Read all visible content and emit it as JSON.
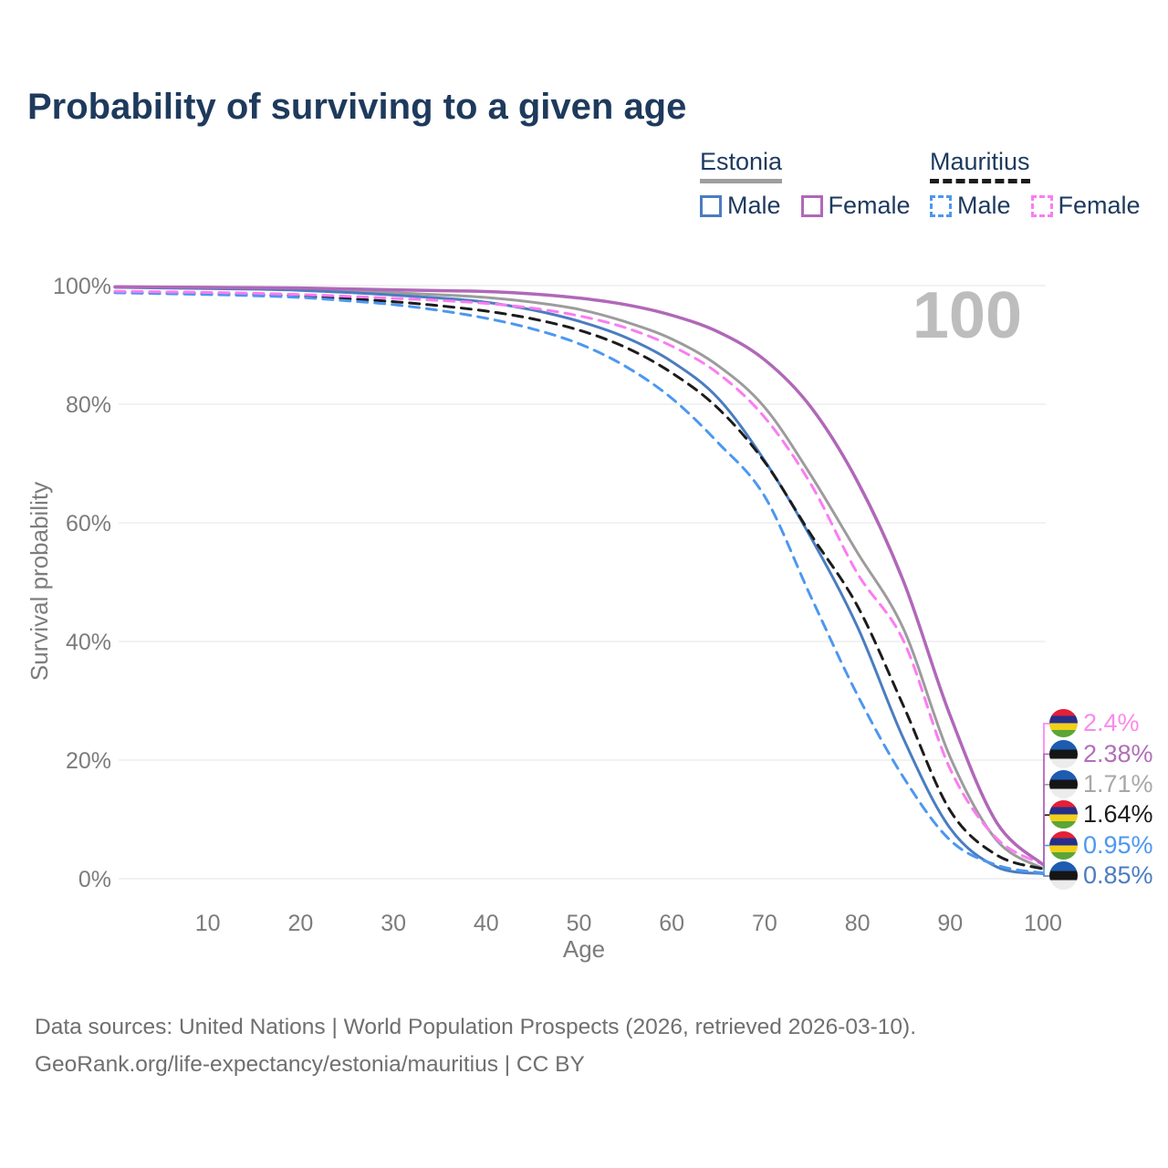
{
  "title": "Probability of surviving to a given age",
  "watermark": "100",
  "legend": {
    "groups": [
      {
        "name": "Estonia",
        "line_style": "solid",
        "underline_color": "#9e9e9e",
        "items": [
          {
            "label": "Male",
            "color": "#4a7dc0",
            "dashed": false
          },
          {
            "label": "Female",
            "color": "#b068b8",
            "dashed": false
          }
        ]
      },
      {
        "name": "Mauritius",
        "line_style": "dashed",
        "underline_color": "#1c1c1c",
        "items": [
          {
            "label": "Male",
            "color": "#4d97f0",
            "dashed": true
          },
          {
            "label": "Female",
            "color": "#fb7cf2",
            "dashed": true
          }
        ]
      }
    ]
  },
  "flags": {
    "estonia": [
      "#1d5cb0",
      "#151515",
      "#ececec"
    ],
    "mauritius": [
      "#e32036",
      "#25308a",
      "#f2cf1c",
      "#5ba636"
    ]
  },
  "chart_data": {
    "type": "line",
    "title": "Probability of surviving to a given age",
    "xlabel": "Age",
    "ylabel": "Survival probability",
    "xlim": [
      0,
      100
    ],
    "ylim": [
      0,
      100
    ],
    "grid": "horizontal",
    "x_ticks": [
      10,
      20,
      30,
      40,
      50,
      60,
      70,
      80,
      90,
      100
    ],
    "y_ticks": [
      0,
      20,
      40,
      60,
      80,
      100
    ],
    "y_tick_suffix": "%",
    "x": [
      0,
      5,
      10,
      15,
      20,
      25,
      30,
      35,
      40,
      45,
      50,
      55,
      60,
      65,
      70,
      75,
      80,
      85,
      90,
      95,
      100
    ],
    "series": [
      {
        "id": "estonia-total",
        "name": "Estonia (both sexes)",
        "color": "#9c9c9c",
        "dashed": false,
        "width": 3,
        "values": [
          99.75,
          99.68,
          99.6,
          99.5,
          99.4,
          99.1,
          98.8,
          98.45,
          98.0,
          97.2,
          96.0,
          93.9,
          91.0,
          86.5,
          79.5,
          68.0,
          55.0,
          42.0,
          20.5,
          6.5,
          1.71
        ],
        "end_label": "1.71%",
        "label_color": "#a8a8a8",
        "flag": "estonia",
        "row": 2
      },
      {
        "id": "estonia-male",
        "name": "Estonia Male",
        "color": "#4a7dc0",
        "dashed": false,
        "width": 3,
        "values": [
          99.7,
          99.6,
          99.5,
          99.4,
          99.2,
          98.85,
          98.4,
          97.9,
          97.2,
          95.9,
          94.0,
          91.3,
          87.2,
          81.0,
          70.5,
          57.5,
          42.5,
          23.5,
          8.5,
          2.0,
          0.85
        ],
        "end_label": "0.85%",
        "label_color": "#4a7dc0",
        "flag": "estonia",
        "row": 5
      },
      {
        "id": "mauritius-total",
        "name": "Mauritius (both sexes)",
        "color": "#1c1c1c",
        "dashed": true,
        "width": 3,
        "values": [
          98.9,
          98.8,
          98.65,
          98.5,
          98.25,
          97.8,
          97.3,
          96.6,
          95.7,
          94.4,
          92.5,
          89.6,
          85.3,
          79.3,
          70.3,
          58.0,
          46.0,
          29.0,
          11.5,
          4.0,
          1.64
        ],
        "end_label": "1.64%",
        "label_color": "#1c1c1c",
        "flag": "mauritius",
        "row": 3
      },
      {
        "id": "mauritius-male",
        "name": "Mauritius Male",
        "color": "#4d97f0",
        "dashed": true,
        "width": 3,
        "values": [
          98.8,
          98.65,
          98.5,
          98.3,
          98.0,
          97.45,
          96.8,
          95.8,
          94.5,
          92.7,
          90.2,
          86.4,
          81.0,
          73.5,
          64.5,
          47.5,
          31.0,
          17.0,
          6.5,
          2.3,
          0.95
        ],
        "end_label": "0.95%",
        "label_color": "#4d97f0",
        "flag": "mauritius",
        "row": 4
      },
      {
        "id": "mauritius-female",
        "name": "Mauritius Female",
        "color": "#fb7cf2",
        "dashed": true,
        "width": 3,
        "values": [
          99.05,
          98.95,
          98.85,
          98.7,
          98.5,
          98.2,
          97.85,
          97.5,
          97.0,
          96.2,
          94.9,
          92.9,
          89.8,
          85.2,
          77.8,
          66.5,
          51.5,
          40.0,
          18.5,
          6.8,
          2.4
        ],
        "end_label": "2.4%",
        "label_color": "#fa8aec",
        "flag": "mauritius",
        "row": 0
      },
      {
        "id": "estonia-female",
        "name": "Estonia Female",
        "color": "#b068b8",
        "dashed": false,
        "width": 3.5,
        "values": [
          99.8,
          99.75,
          99.7,
          99.65,
          99.6,
          99.45,
          99.3,
          99.15,
          99.0,
          98.6,
          97.9,
          96.8,
          95.0,
          92.2,
          87.5,
          79.5,
          67.0,
          50.0,
          27.5,
          9.5,
          2.38
        ],
        "end_label": "2.38%",
        "label_color": "#b26eb8",
        "flag": "estonia",
        "row": 1
      }
    ]
  },
  "footer": {
    "line1": "Data sources: United Nations | World Population Prospects (2026, retrieved 2026-03-10).",
    "line2": "GeoRank.org/life-expectancy/estonia/mauritius | CC BY"
  }
}
